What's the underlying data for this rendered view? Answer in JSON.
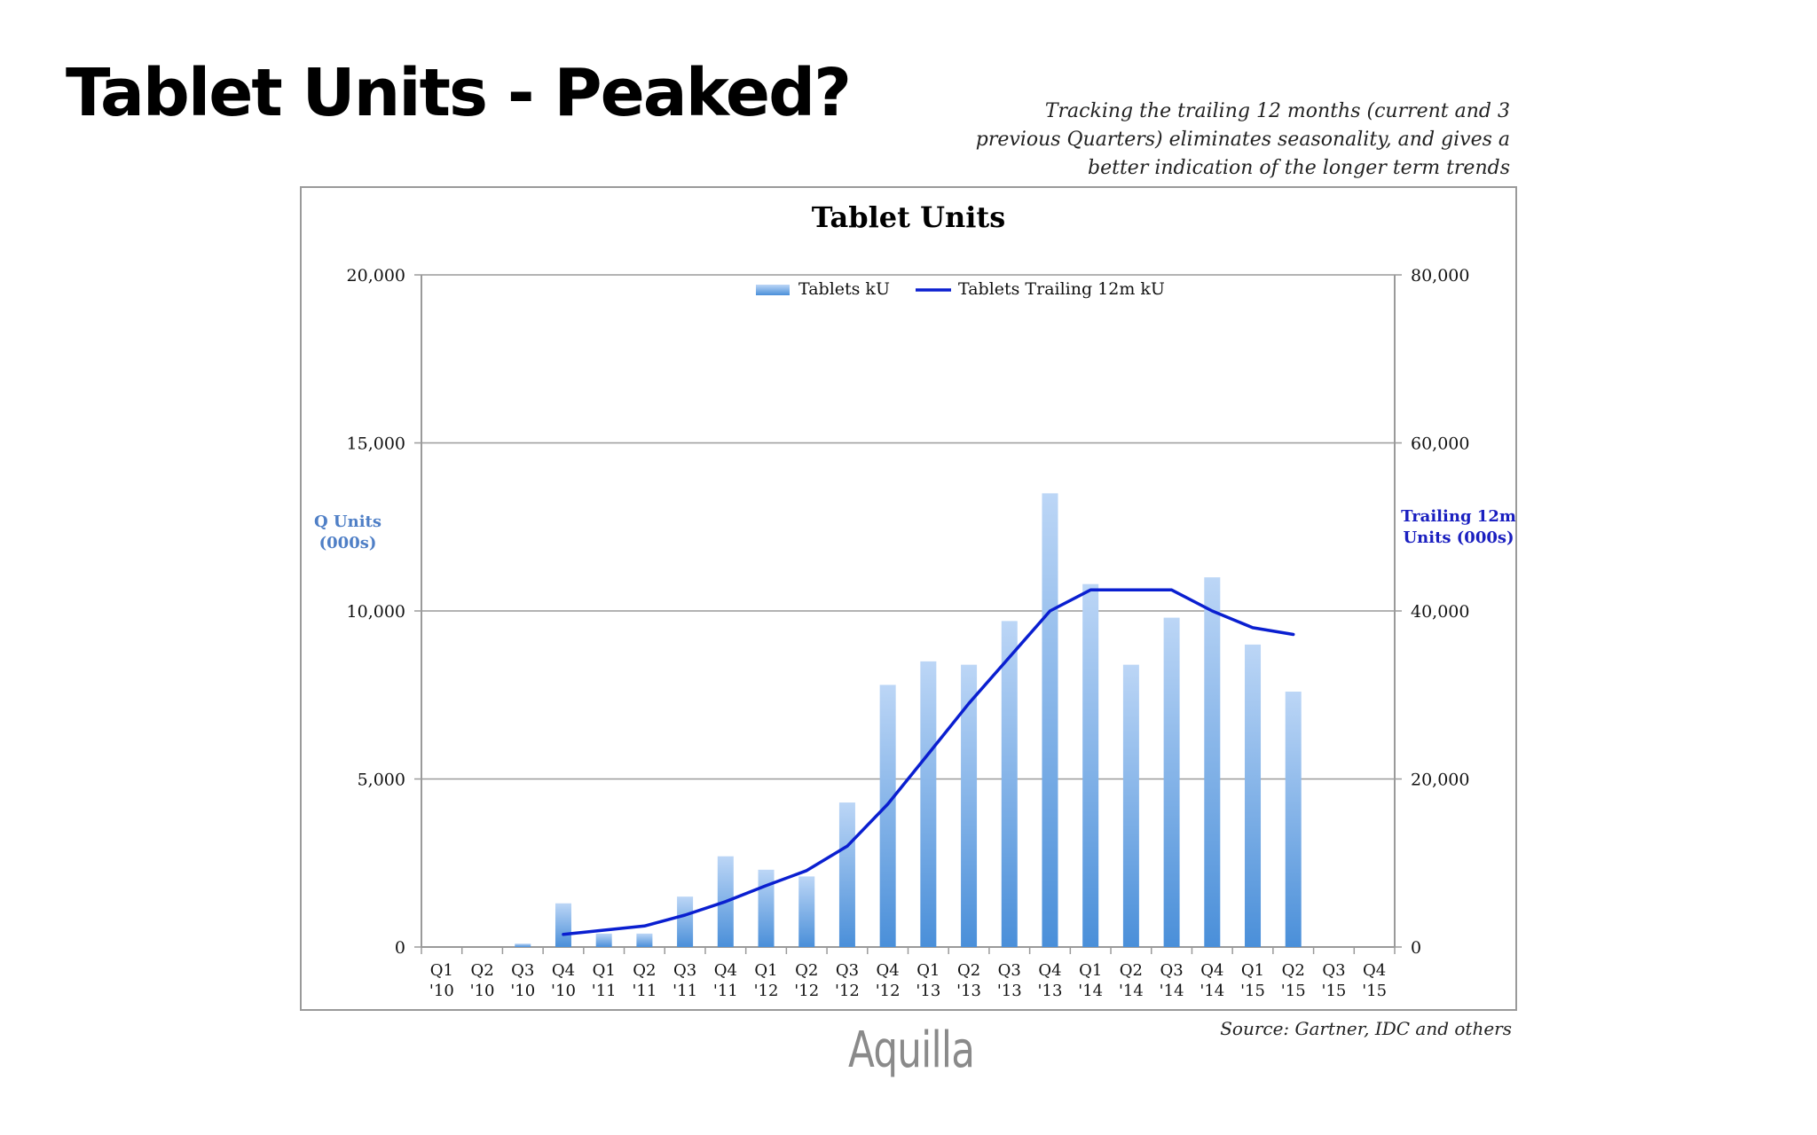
{
  "slide": {
    "title": "Tablet Units - Peaked?",
    "subtitle": "Tracking the trailing 12 months (current and 3 previous Quarters) eliminates seasonality, and gives a better indication of the longer term trends",
    "source": "Source: Gartner, IDC and others",
    "logo": "Aquilla"
  },
  "colors": {
    "bar_top": "#bcd6f6",
    "bar_bottom": "#4a8fd9",
    "line": "#0a1fd0",
    "left_axis_label": "#4f7fc6",
    "right_axis_label": "#1a1fc0",
    "grid": "#9a9a9a"
  },
  "chart_data": {
    "type": "bar",
    "title": "Tablet Units",
    "categories": [
      "Q1 '10",
      "Q2 '10",
      "Q3 '10",
      "Q4 '10",
      "Q1 '11",
      "Q2 '11",
      "Q3 '11",
      "Q4 '11",
      "Q1 '12",
      "Q2 '12",
      "Q3 '12",
      "Q4 '12",
      "Q1 '13",
      "Q2 '13",
      "Q3 '13",
      "Q4 '13",
      "Q1 '14",
      "Q2 '14",
      "Q3 '14",
      "Q4 '14",
      "Q1 '15",
      "Q2 '15",
      "Q3 '15",
      "Q4 '15"
    ],
    "category_lines": [
      [
        "Q1",
        "'10"
      ],
      [
        "Q2",
        "'10"
      ],
      [
        "Q3",
        "'10"
      ],
      [
        "Q4",
        "'10"
      ],
      [
        "Q1",
        "'11"
      ],
      [
        "Q2",
        "'11"
      ],
      [
        "Q3",
        "'11"
      ],
      [
        "Q4",
        "'11"
      ],
      [
        "Q1",
        "'12"
      ],
      [
        "Q2",
        "'12"
      ],
      [
        "Q3",
        "'12"
      ],
      [
        "Q4",
        "'12"
      ],
      [
        "Q1",
        "'13"
      ],
      [
        "Q2",
        "'13"
      ],
      [
        "Q3",
        "'13"
      ],
      [
        "Q4",
        "'13"
      ],
      [
        "Q1",
        "'14"
      ],
      [
        "Q2",
        "'14"
      ],
      [
        "Q3",
        "'14"
      ],
      [
        "Q4",
        "'14"
      ],
      [
        "Q1",
        "'15"
      ],
      [
        "Q2",
        "'15"
      ],
      [
        "Q3",
        "'15"
      ],
      [
        "Q4",
        "'15"
      ]
    ],
    "series": [
      {
        "name": "Tablets kU",
        "type": "bar",
        "axis": "left",
        "values": [
          null,
          null,
          100,
          1300,
          400,
          400,
          1500,
          2700,
          2300,
          2100,
          4300,
          7800,
          8500,
          8400,
          9700,
          13500,
          10800,
          8400,
          9800,
          11000,
          9000,
          7600,
          null,
          null
        ]
      },
      {
        "name": "Tablets Trailing 12m kU",
        "type": "line",
        "axis": "right",
        "values": [
          null,
          null,
          null,
          1500,
          2000,
          2500,
          3800,
          5400,
          7300,
          9100,
          12000,
          17000,
          23000,
          29000,
          34500,
          40000,
          42500,
          42500,
          42500,
          40000,
          38000,
          37200,
          null,
          null
        ]
      }
    ],
    "y_left": {
      "label_lines": [
        "Q Units",
        "(000s)"
      ],
      "range": [
        0,
        20000
      ],
      "ticks": [
        "0",
        "5,000",
        "10,000",
        "15,000",
        "20,000"
      ]
    },
    "y_right": {
      "label_lines": [
        "Trailing 12m",
        "Units (000s)"
      ],
      "range": [
        0,
        80000
      ],
      "ticks": [
        "0",
        "20,000",
        "40,000",
        "60,000",
        "80,000"
      ]
    },
    "grid": true,
    "legend": "top-center"
  }
}
